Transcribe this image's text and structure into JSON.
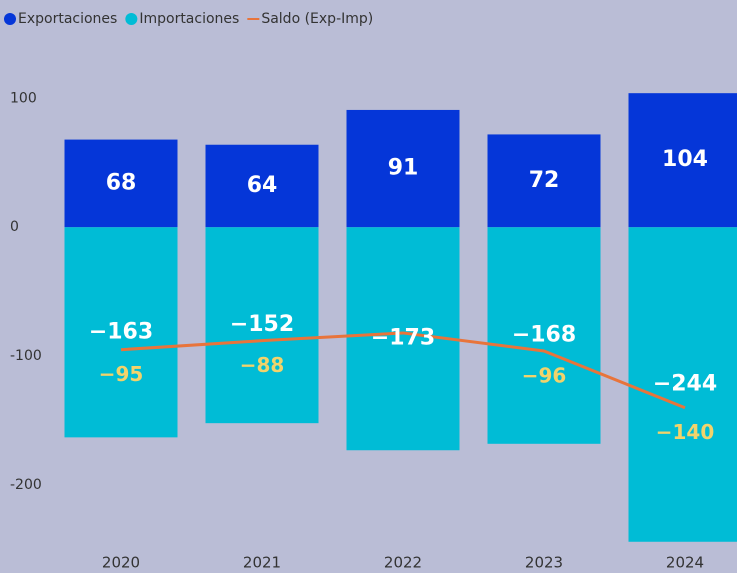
{
  "chart_data": {
    "type": "bar",
    "categories": [
      "2020",
      "2021",
      "2022",
      "2023",
      "2024"
    ],
    "series": [
      {
        "name": "Exportaciones",
        "type": "bar",
        "color": "#0536d8",
        "values": [
          68,
          64,
          91,
          72,
          104
        ]
      },
      {
        "name": "Importaciones",
        "type": "bar",
        "color": "#00bcd6",
        "values": [
          -163,
          -152,
          -173,
          -168,
          -244
        ],
        "value_labels": [
          "−163",
          "−152",
          "−173",
          "−168",
          "−244"
        ]
      },
      {
        "name": "Saldo (Exp-Imp)",
        "type": "line",
        "color": "#e8743b",
        "values": [
          -95,
          -88,
          -82,
          -96,
          -140
        ],
        "value_labels": [
          "−95",
          "−88",
          null,
          "−96",
          "−140"
        ]
      }
    ],
    "ylim": [
      -250,
      115
    ],
    "yticks": [
      -200,
      -100,
      0,
      100
    ],
    "grid": false
  }
}
